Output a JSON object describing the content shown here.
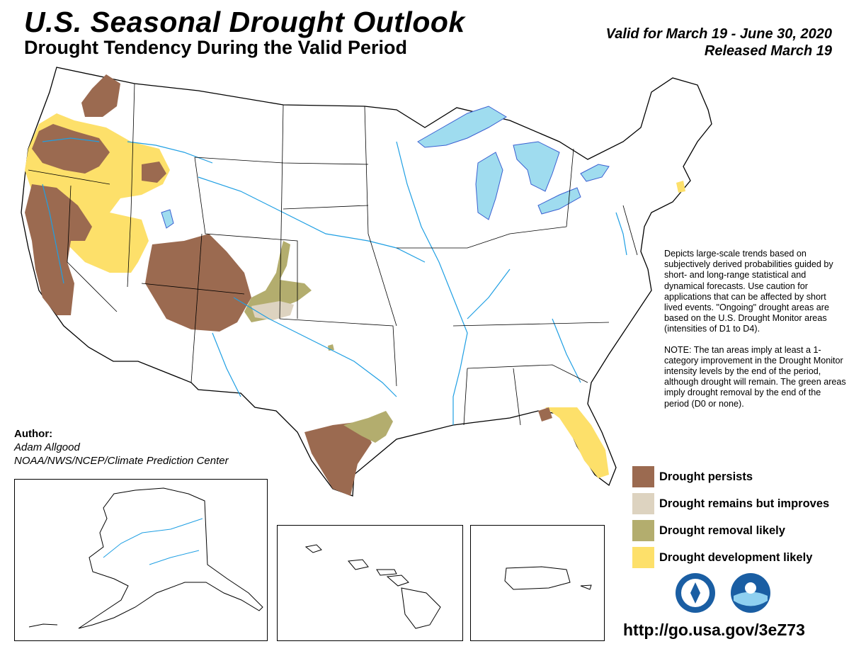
{
  "header": {
    "title": "U.S. Seasonal Drought Outlook",
    "subtitle": "Drought Tendency During the Valid Period",
    "valid_line": "Valid for March 19 - June 30, 2020",
    "released_line": "Released March 19"
  },
  "description": {
    "paragraph1": "Depicts large-scale trends based on subjectively derived probabilities guided by short- and long-range statistical and dynamical forecasts. Use caution for applications that can be affected by short lived events. \"Ongoing\" drought areas are based on the U.S. Drought Monitor areas (intensities of D1 to D4).",
    "paragraph2": "NOTE: The tan areas imply at least a 1-category improvement in the Drought Monitor intensity levels by the end of the period, although drought will remain. The green areas imply drought removal by the end of the period (D0 or none)."
  },
  "legend": [
    {
      "label": "Drought persists",
      "color": "#9b6a50"
    },
    {
      "label": "Drought remains but improves",
      "color": "#ddd3c0"
    },
    {
      "label": "Drought removal likely",
      "color": "#b3ad6e"
    },
    {
      "label": "Drought development likely",
      "color": "#fde06a"
    }
  ],
  "author": {
    "heading": "Author:",
    "name": "Adam Allgood",
    "affiliation": "NOAA/NWS/NCEP/Climate Prediction Center"
  },
  "url": "http://go.usa.gov/3eZ73",
  "colors": {
    "water": "#9fdcef",
    "river": "#1f9fe3",
    "persist": "#9b6a50",
    "improve": "#ddd3c0",
    "removal": "#b3ad6e",
    "development": "#fde06a"
  },
  "insets": [
    "alaska",
    "hawaii",
    "puerto-rico"
  ],
  "logos": [
    "nws-logo-icon",
    "noaa-logo-icon"
  ]
}
